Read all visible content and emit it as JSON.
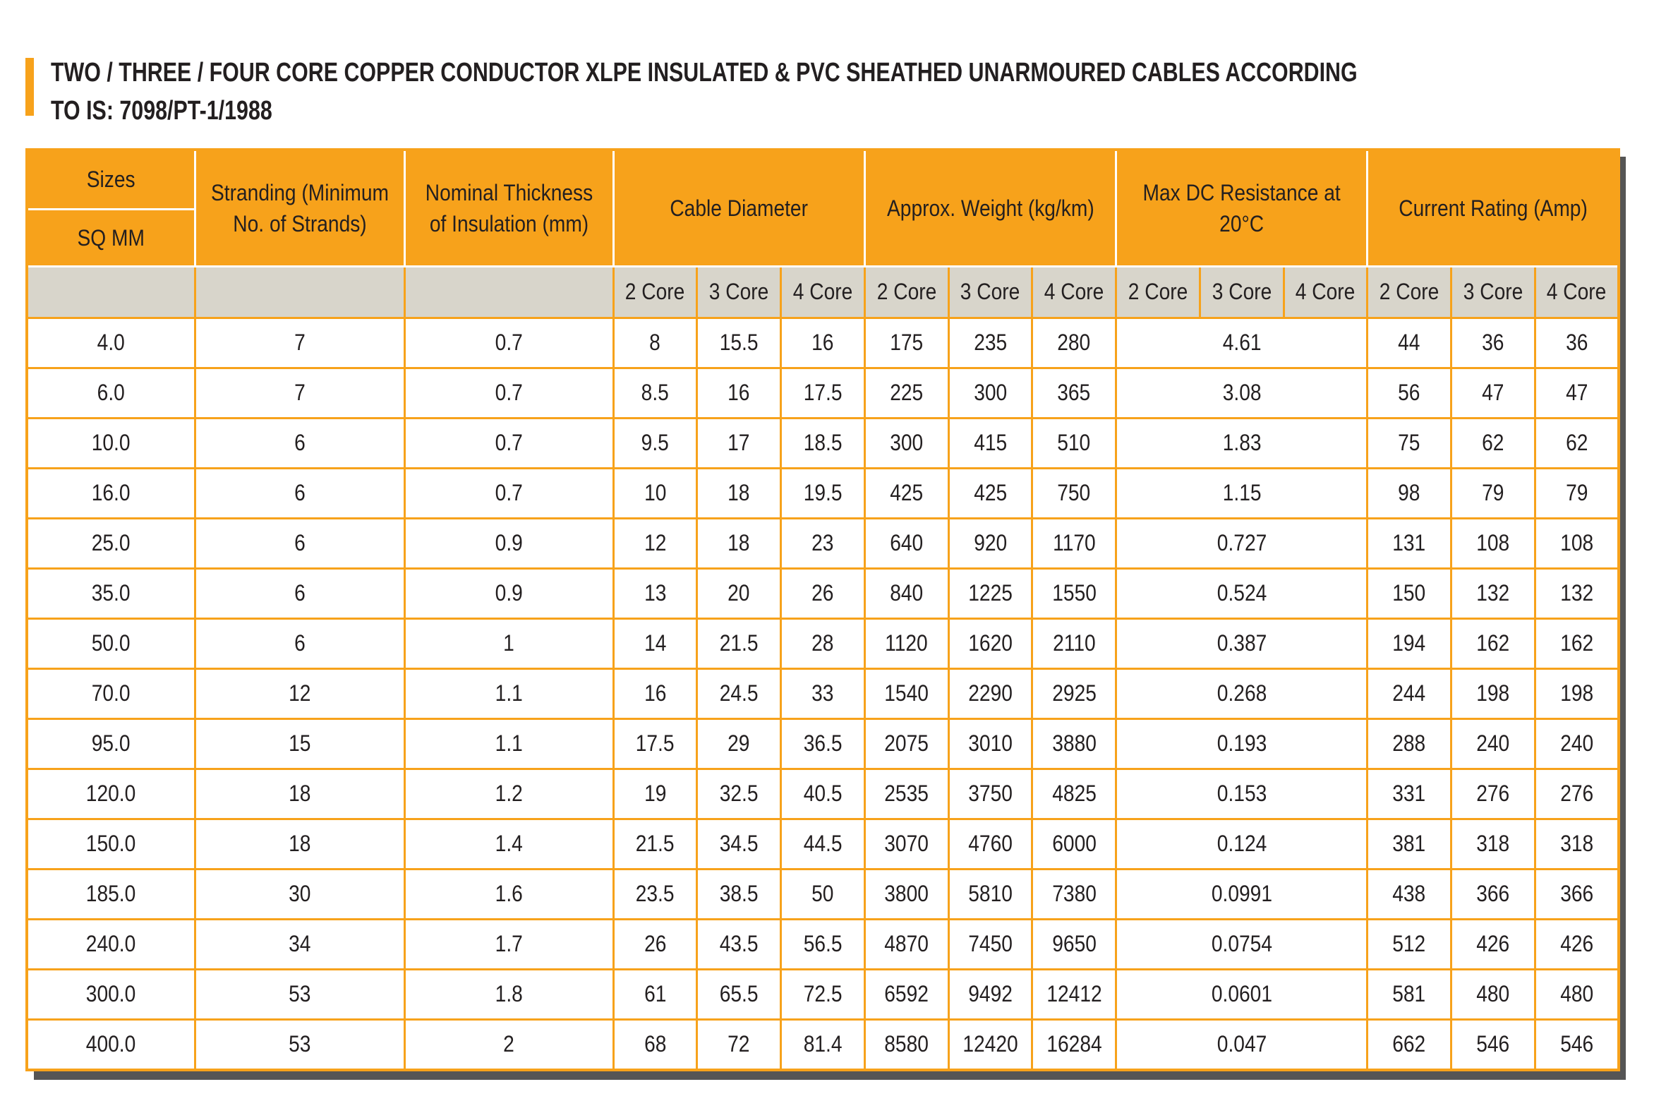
{
  "title": {
    "line1": "TWO / THREE / FOUR CORE COPPER CONDUCTOR XLPE INSULATED & PVC SHEATHED UNARMOURED CABLES ACCORDING",
    "line2": "TO IS: 7098/PT-1/1988"
  },
  "table": {
    "header": {
      "sizes": "Sizes",
      "sizes_unit": "SQ MM",
      "stranding": "Stranding (Minimum No. of Strands)",
      "thickness": "Nominal Thickness of Insulation (mm)",
      "diameter": "Cable Diameter",
      "weight": "Approx. Weight (kg/km)",
      "resistance": "Max DC Resistance at 20°C",
      "rating": "Current Rating (Amp)"
    },
    "subheader": [
      "2 Core",
      "3 Core",
      "4 Core",
      "2 Core",
      "3 Core",
      "4 Core",
      "2 Core",
      "3 Core",
      "4 Core",
      "2 Core",
      "3 Core",
      "4 Core"
    ],
    "rows": [
      [
        "4.0",
        "7",
        "0.7",
        "8",
        "15.5",
        "16",
        "175",
        "235",
        "280",
        "4.61",
        "44",
        "36",
        "36"
      ],
      [
        "6.0",
        "7",
        "0.7",
        "8.5",
        "16",
        "17.5",
        "225",
        "300",
        "365",
        "3.08",
        "56",
        "47",
        "47"
      ],
      [
        "10.0",
        "6",
        "0.7",
        "9.5",
        "17",
        "18.5",
        "300",
        "415",
        "510",
        "1.83",
        "75",
        "62",
        "62"
      ],
      [
        "16.0",
        "6",
        "0.7",
        "10",
        "18",
        "19.5",
        "425",
        "425",
        "750",
        "1.15",
        "98",
        "79",
        "79"
      ],
      [
        "25.0",
        "6",
        "0.9",
        "12",
        "18",
        "23",
        "640",
        "920",
        "1170",
        "0.727",
        "131",
        "108",
        "108"
      ],
      [
        "35.0",
        "6",
        "0.9",
        "13",
        "20",
        "26",
        "840",
        "1225",
        "1550",
        "0.524",
        "150",
        "132",
        "132"
      ],
      [
        "50.0",
        "6",
        "1",
        "14",
        "21.5",
        "28",
        "1120",
        "1620",
        "2110",
        "0.387",
        "194",
        "162",
        "162"
      ],
      [
        "70.0",
        "12",
        "1.1",
        "16",
        "24.5",
        "33",
        "1540",
        "2290",
        "2925",
        "0.268",
        "244",
        "198",
        "198"
      ],
      [
        "95.0",
        "15",
        "1.1",
        "17.5",
        "29",
        "36.5",
        "2075",
        "3010",
        "3880",
        "0.193",
        "288",
        "240",
        "240"
      ],
      [
        "120.0",
        "18",
        "1.2",
        "19",
        "32.5",
        "40.5",
        "2535",
        "3750",
        "4825",
        "0.153",
        "331",
        "276",
        "276"
      ],
      [
        "150.0",
        "18",
        "1.4",
        "21.5",
        "34.5",
        "44.5",
        "3070",
        "4760",
        "6000",
        "0.124",
        "381",
        "318",
        "318"
      ],
      [
        "185.0",
        "30",
        "1.6",
        "23.5",
        "38.5",
        "50",
        "3800",
        "5810",
        "7380",
        "0.0991",
        "438",
        "366",
        "366"
      ],
      [
        "240.0",
        "34",
        "1.7",
        "26",
        "43.5",
        "56.5",
        "4870",
        "7450",
        "9650",
        "0.0754",
        "512",
        "426",
        "426"
      ],
      [
        "300.0",
        "53",
        "1.8",
        "61",
        "65.5",
        "72.5",
        "6592",
        "9492",
        "12412",
        "0.0601",
        "581",
        "480",
        "480"
      ],
      [
        "400.0",
        "53",
        "2",
        "68",
        "72",
        "81.4",
        "8580",
        "12420",
        "16284",
        "0.047",
        "662",
        "546",
        "546"
      ]
    ]
  }
}
